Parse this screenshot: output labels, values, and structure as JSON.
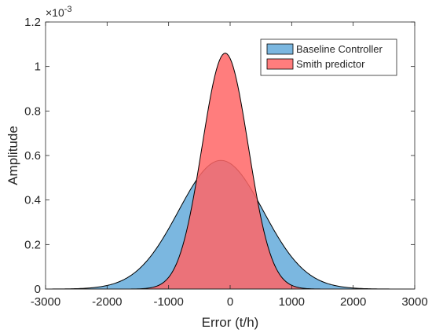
{
  "chart_data": {
    "type": "area",
    "xlabel": "Error (t/h)",
    "ylabel": "Amplitude",
    "exponent_label": "×10",
    "exponent_value": "-3",
    "xlim": [
      -3000,
      3000
    ],
    "ylim": [
      0,
      0.0012
    ],
    "x_ticks": [
      -3000,
      -2000,
      -1000,
      0,
      1000,
      2000,
      3000
    ],
    "x_tick_labels": [
      "-3000",
      "-2000",
      "-1000",
      "0",
      "1000",
      "2000",
      "3000"
    ],
    "y_ticks": [
      0,
      0.0002,
      0.0004,
      0.0006,
      0.0008,
      0.001,
      0.0012
    ],
    "y_tick_labels": [
      "0",
      "0.2",
      "0.4",
      "0.6",
      "0.8",
      "1",
      "1.2"
    ],
    "grid": false,
    "legend_position": "top-right",
    "series": [
      {
        "name": "Baseline Controller",
        "distribution": "normal",
        "mean": -150,
        "std": 690,
        "peak": 0.000578,
        "color": "#5aa5d8",
        "opacity": 0.8
      },
      {
        "name": "Smith predictor",
        "distribution": "normal",
        "mean": -80,
        "std": 375,
        "peak": 0.00106,
        "color": "#ff6666",
        "opacity": 0.85
      }
    ]
  }
}
